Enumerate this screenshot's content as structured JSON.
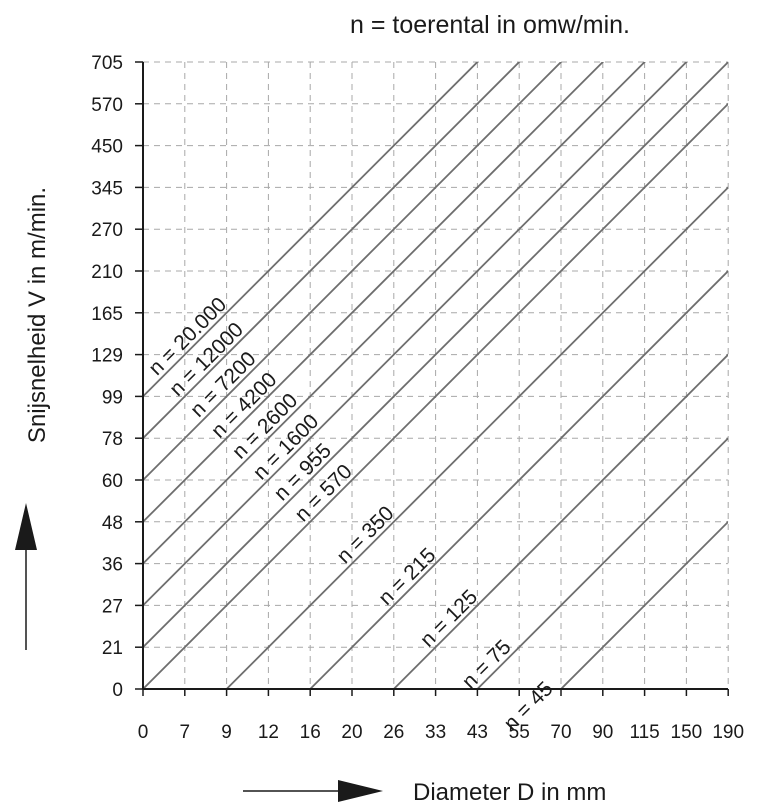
{
  "chart_data": {
    "type": "line",
    "title": "n = toerental in omw/min.",
    "xlabel": "Diameter D in mm",
    "ylabel": "Snijsnelheid  V in m/min.",
    "x_ticks": [
      "0",
      "7",
      "9",
      "12",
      "16",
      "20",
      "26",
      "33",
      "43",
      "55",
      "70",
      "90",
      "115",
      "150",
      "190"
    ],
    "y_ticks": [
      "0",
      "21",
      "27",
      "36",
      "48",
      "60",
      "78",
      "99",
      "129",
      "165",
      "210",
      "270",
      "345",
      "450",
      "570",
      "705"
    ],
    "grid": true,
    "series": [
      {
        "name": "n = 20.000",
        "start_x_tick": 0,
        "start_y_tick": 7
      },
      {
        "name": "n = 12000",
        "start_x_tick": 0,
        "start_y_tick": 6
      },
      {
        "name": "n = 7200",
        "start_x_tick": 0,
        "start_y_tick": 5
      },
      {
        "name": "n = 4200",
        "start_x_tick": 0,
        "start_y_tick": 4
      },
      {
        "name": "n = 2600",
        "start_x_tick": 0,
        "start_y_tick": 3
      },
      {
        "name": "n = 1600",
        "start_x_tick": 0,
        "start_y_tick": 2
      },
      {
        "name": "n = 955",
        "start_x_tick": 0,
        "start_y_tick": 1
      },
      {
        "name": "n = 570",
        "start_x_tick": 0,
        "start_y_tick": 0
      },
      {
        "name": "n = 350",
        "start_x_tick": 2,
        "start_y_tick": 0
      },
      {
        "name": "n = 215",
        "start_x_tick": 4,
        "start_y_tick": 0
      },
      {
        "name": "n = 125",
        "start_x_tick": 6,
        "start_y_tick": 0
      },
      {
        "name": "n = 75",
        "start_x_tick": 8,
        "start_y_tick": 0
      },
      {
        "name": "n = 45",
        "start_x_tick": 10,
        "start_y_tick": 0
      }
    ]
  }
}
